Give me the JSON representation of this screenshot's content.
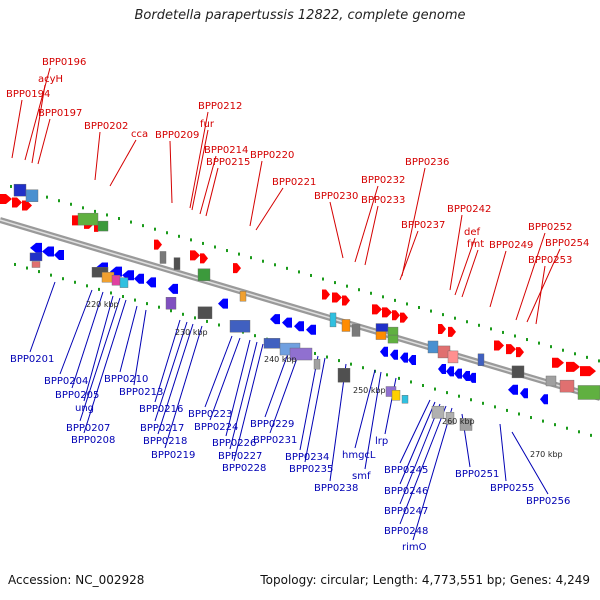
{
  "title": "Bordetella parapertussis 12822, complete genome",
  "accession": "Accession: NC_002928",
  "summary": "Topology: circular; Length: 4,773,551 bp; Genes: 4,249",
  "kbp_ticks": [
    "220 kbp",
    "230 kbp",
    "240 kbp",
    "250 kbp",
    "260 kbp",
    "270 kbp"
  ],
  "top_labels": [
    "BPP0196",
    "acyH",
    "BPP0194",
    "BPP0197",
    "BPP0202",
    "cca",
    "BPP0209",
    "BPP0212",
    "fur",
    "BPP0214",
    "BPP0215",
    "BPP0220",
    "BPP0221",
    "BPP0230",
    "BPP0232",
    "BPP0233",
    "BPP0236",
    "BPP0237",
    "BPP0242",
    "def",
    "fmt",
    "BPP0249",
    "BPP0252",
    "BPP0254",
    "BPP0253"
  ],
  "bottom_labels": [
    "BPP0201",
    "BPP0204",
    "BPP0205",
    "ung",
    "BPP0207",
    "BPP0208",
    "BPP0210",
    "BPP0213",
    "BPP0216",
    "BPP0217",
    "BPP0218",
    "BPP0219",
    "BPP0223",
    "BPP0224",
    "BPP0226",
    "BPP0227",
    "BPP0228",
    "BPP0229",
    "BPP0231",
    "BPP0234",
    "BPP0235",
    "BPP0238",
    "hmgcL",
    "smf",
    "lrp",
    "BPP0245",
    "BPP0246",
    "BPP0247",
    "BPP0248",
    "rimO",
    "BPP0251",
    "BPP0255",
    "BPP0256"
  ],
  "colors": {
    "forward_arrow": "#ff0000",
    "reverse_arrow": "#0000ff",
    "top_label_text": "#d40000",
    "bottom_label_text": "#0000b4",
    "backbone": "#888888",
    "tick": "#1a9a1a"
  }
}
